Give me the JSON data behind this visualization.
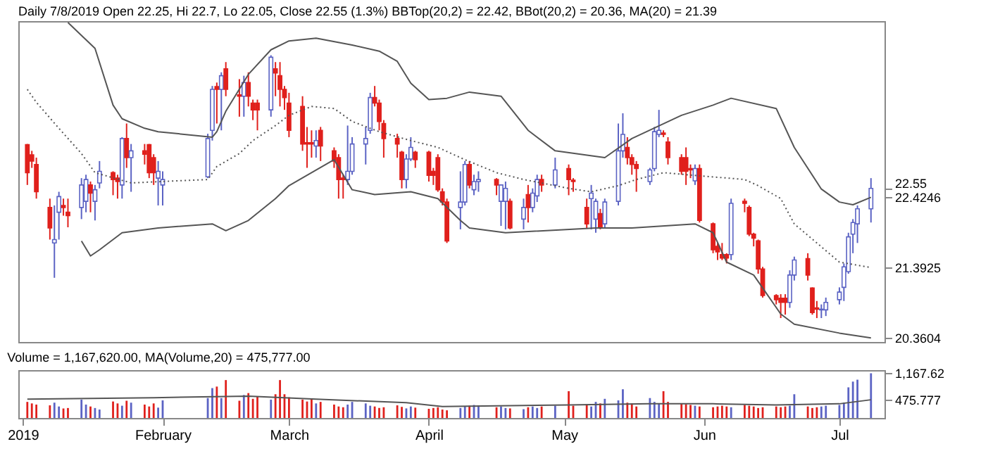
{
  "chart_data": [
    {
      "type": "candlestick",
      "title": "Daily 7/8/2019 Open 22.25, Hi 22.7, Lo 22.05, Close 22.55 (1.3%) BBTop(20,2) = 22.42, BBot(20,2) = 20.36, MA(20) = 21.39",
      "x": [
        "2019-01-02",
        "2019-01-03",
        "2019-01-04",
        "2019-01-07",
        "2019-01-08",
        "2019-01-09",
        "2019-01-10",
        "2019-01-11",
        "2019-01-14",
        "2019-01-15",
        "2019-01-16",
        "2019-01-17",
        "2019-01-18",
        "2019-01-21",
        "2019-01-22",
        "2019-01-23",
        "2019-01-24",
        "2019-01-25",
        "2019-01-28",
        "2019-01-29",
        "2019-01-30",
        "2019-01-31",
        "2019-02-01",
        "2019-02-11",
        "2019-02-12",
        "2019-02-13",
        "2019-02-14",
        "2019-02-15",
        "2019-02-18",
        "2019-02-19",
        "2019-02-20",
        "2019-02-21",
        "2019-02-22",
        "2019-02-25",
        "2019-02-26",
        "2019-02-27",
        "2019-02-28",
        "2019-03-01",
        "2019-03-04",
        "2019-03-05",
        "2019-03-06",
        "2019-03-07",
        "2019-03-08",
        "2019-03-11",
        "2019-03-12",
        "2019-03-13",
        "2019-03-14",
        "2019-03-15",
        "2019-03-18",
        "2019-03-19",
        "2019-03-20",
        "2019-03-21",
        "2019-03-22",
        "2019-03-25",
        "2019-03-26",
        "2019-03-27",
        "2019-03-28",
        "2019-03-29",
        "2019-04-01",
        "2019-04-02",
        "2019-04-03",
        "2019-04-04",
        "2019-04-05",
        "2019-04-08",
        "2019-04-09",
        "2019-04-10",
        "2019-04-11",
        "2019-04-12",
        "2019-04-16",
        "2019-04-17",
        "2019-04-18",
        "2019-04-19",
        "2019-04-22",
        "2019-04-23",
        "2019-04-24",
        "2019-04-25",
        "2019-04-26",
        "2019-04-29",
        "2019-05-02",
        "2019-05-03",
        "2019-05-06",
        "2019-05-07",
        "2019-05-08",
        "2019-05-09",
        "2019-05-10",
        "2019-05-13",
        "2019-05-14",
        "2019-05-15",
        "2019-05-16",
        "2019-05-17",
        "2019-05-20",
        "2019-05-21",
        "2019-05-22",
        "2019-05-23",
        "2019-05-24",
        "2019-05-27",
        "2019-05-28",
        "2019-05-29",
        "2019-05-30",
        "2019-05-31",
        "2019-06-03",
        "2019-06-04",
        "2019-06-05",
        "2019-06-06",
        "2019-06-07",
        "2019-06-10",
        "2019-06-11",
        "2019-06-12",
        "2019-06-13",
        "2019-06-14",
        "2019-06-17",
        "2019-06-18",
        "2019-06-19",
        "2019-06-20",
        "2019-06-21",
        "2019-06-24",
        "2019-06-25",
        "2019-06-26",
        "2019-06-27",
        "2019-06-28",
        "2019-07-01",
        "2019-07-02",
        "2019-07-03",
        "2019-07-04",
        "2019-07-05",
        "2019-07-08"
      ],
      "ohlc": [
        [
          23.19,
          23.2,
          22.6,
          22.78
        ],
        [
          23.04,
          23.1,
          22.85,
          22.95
        ],
        [
          22.9,
          23.0,
          22.4,
          22.5
        ],
        [
          22.27,
          22.4,
          21.8,
          21.97
        ],
        [
          21.75,
          22.3,
          21.24,
          21.8
        ],
        [
          22.2,
          22.5,
          21.8,
          22.43
        ],
        [
          22.3,
          22.4,
          22.15,
          22.27
        ],
        [
          22.2,
          22.4,
          21.98,
          22.15
        ],
        [
          22.27,
          22.7,
          22.1,
          22.6
        ],
        [
          22.36,
          22.75,
          22.2,
          22.68
        ],
        [
          22.6,
          22.65,
          22.2,
          22.48
        ],
        [
          22.36,
          22.6,
          22.08,
          22.53
        ],
        [
          22.63,
          22.95,
          22.55,
          22.8
        ],
        [
          22.78,
          22.8,
          22.45,
          22.68
        ],
        [
          22.7,
          22.75,
          22.4,
          22.65
        ],
        [
          22.6,
          23.3,
          22.4,
          23.28
        ],
        [
          23.28,
          23.5,
          22.85,
          23.0
        ],
        [
          23.0,
          23.2,
          22.5,
          23.1
        ],
        [
          23.1,
          23.2,
          22.9,
          23.05
        ],
        [
          23.19,
          23.2,
          22.7,
          22.78
        ],
        [
          23.0,
          23.05,
          22.6,
          22.78
        ],
        [
          22.7,
          22.95,
          22.3,
          22.8
        ],
        [
          22.6,
          22.8,
          22.3,
          22.68
        ],
        [
          22.72,
          23.35,
          22.7,
          23.28
        ],
        [
          23.4,
          24.05,
          23.25,
          24.0
        ],
        [
          24.04,
          24.1,
          23.5,
          24.0
        ],
        [
          24.0,
          24.25,
          23.4,
          24.2
        ],
        [
          24.3,
          24.4,
          23.9,
          24.0
        ],
        [
          23.92,
          24.15,
          23.6,
          23.9
        ],
        [
          23.9,
          24.2,
          23.6,
          24.1
        ],
        [
          24.1,
          24.25,
          23.75,
          23.9
        ],
        [
          23.8,
          23.85,
          23.55,
          23.7
        ],
        [
          23.8,
          23.85,
          23.4,
          23.7
        ],
        [
          23.7,
          24.5,
          23.6,
          24.47
        ],
        [
          24.3,
          24.4,
          23.9,
          24.24
        ],
        [
          24.2,
          24.4,
          23.75,
          24.0
        ],
        [
          24.0,
          24.05,
          23.7,
          23.88
        ],
        [
          23.8,
          23.95,
          23.3,
          23.4
        ],
        [
          23.75,
          23.9,
          23.1,
          23.2
        ],
        [
          23.22,
          23.45,
          22.85,
          23.2
        ],
        [
          23.22,
          23.4,
          23.0,
          23.2
        ],
        [
          23.17,
          23.4,
          23.0,
          23.25
        ],
        [
          23.4,
          23.45,
          22.95,
          23.17
        ],
        [
          23.1,
          23.15,
          22.85,
          22.95
        ],
        [
          23.0,
          23.05,
          22.4,
          22.68
        ],
        [
          22.7,
          22.75,
          22.4,
          22.68
        ],
        [
          22.68,
          23.47,
          22.6,
          22.8
        ],
        [
          22.8,
          23.3,
          22.75,
          23.2
        ],
        [
          23.2,
          23.45,
          22.9,
          23.28
        ],
        [
          23.4,
          23.95,
          23.35,
          23.88
        ],
        [
          23.88,
          24.05,
          23.75,
          23.8
        ],
        [
          23.8,
          23.85,
          23.4,
          23.53
        ],
        [
          23.5,
          23.55,
          23.0,
          23.28
        ],
        [
          23.28,
          23.35,
          23.0,
          23.2
        ],
        [
          23.08,
          23.1,
          22.55,
          22.68
        ],
        [
          22.68,
          23.05,
          22.55,
          22.98
        ],
        [
          22.98,
          23.3,
          22.95,
          23.15
        ],
        [
          23.08,
          23.1,
          22.85,
          22.97
        ],
        [
          23.08,
          23.1,
          22.65,
          22.74
        ],
        [
          22.8,
          22.85,
          22.6,
          22.74
        ],
        [
          23.0,
          23.05,
          22.5,
          22.53
        ],
        [
          22.5,
          22.55,
          22.3,
          22.35
        ],
        [
          22.35,
          22.4,
          21.75,
          21.78
        ],
        [
          22.27,
          22.8,
          21.95,
          22.35
        ],
        [
          22.35,
          22.95,
          22.3,
          22.9
        ],
        [
          22.9,
          22.95,
          22.55,
          22.6
        ],
        [
          22.53,
          22.75,
          22.45,
          22.65
        ],
        [
          22.65,
          22.8,
          22.5,
          22.68
        ],
        [
          22.68,
          22.7,
          22.45,
          22.6
        ],
        [
          22.36,
          22.6,
          22.0,
          22.6
        ],
        [
          22.36,
          22.65,
          21.95,
          22.55
        ],
        [
          22.36,
          22.4,
          21.95,
          21.97
        ],
        [
          22.1,
          22.4,
          21.95,
          22.27
        ],
        [
          22.46,
          22.6,
          22.05,
          22.27
        ],
        [
          22.27,
          22.55,
          22.2,
          22.48
        ],
        [
          22.44,
          22.75,
          22.35,
          22.68
        ],
        [
          22.68,
          22.75,
          22.5,
          22.6
        ],
        [
          22.6,
          23.0,
          22.55,
          22.82
        ],
        [
          22.84,
          22.9,
          22.45,
          22.68
        ],
        [
          22.67,
          22.7,
          22.5,
          22.65
        ],
        [
          22.27,
          22.4,
          21.97,
          22.03
        ],
        [
          22.4,
          22.6,
          21.95,
          22.48
        ],
        [
          22.1,
          22.4,
          21.9,
          22.36
        ],
        [
          22.18,
          22.25,
          21.95,
          21.97
        ],
        [
          22.03,
          22.4,
          21.97,
          22.35
        ],
        [
          22.36,
          23.5,
          22.3,
          23.1
        ],
        [
          23.1,
          23.65,
          23.0,
          23.34
        ],
        [
          23.15,
          23.3,
          22.9,
          23.0
        ],
        [
          23.0,
          23.05,
          22.75,
          22.9
        ],
        [
          22.9,
          22.95,
          22.5,
          22.84
        ],
        [
          22.65,
          22.85,
          22.6,
          22.82
        ],
        [
          22.84,
          23.45,
          22.8,
          23.38
        ],
        [
          23.34,
          23.7,
          23.3,
          23.4
        ],
        [
          23.36,
          23.4,
          23.3,
          23.34
        ],
        [
          23.23,
          23.3,
          22.9,
          23.0
        ],
        [
          23.0,
          23.05,
          22.75,
          22.8
        ],
        [
          23.0,
          23.15,
          22.6,
          22.8
        ],
        [
          22.84,
          22.9,
          22.7,
          22.82
        ],
        [
          22.66,
          22.9,
          22.6,
          22.84
        ],
        [
          22.84,
          22.9,
          22.05,
          22.08
        ],
        [
          22.03,
          22.05,
          21.6,
          21.65
        ],
        [
          21.7,
          21.75,
          21.5,
          21.62
        ],
        [
          21.58,
          21.75,
          21.5,
          21.53
        ],
        [
          21.58,
          21.6,
          21.45,
          21.53
        ],
        [
          21.58,
          22.4,
          21.5,
          22.33
        ],
        [
          22.36,
          22.4,
          22.2,
          22.33
        ],
        [
          22.27,
          22.3,
          21.85,
          21.88
        ],
        [
          21.88,
          21.9,
          21.7,
          21.82
        ],
        [
          21.78,
          21.8,
          21.3,
          21.37
        ],
        [
          21.37,
          21.4,
          20.95,
          20.98
        ],
        [
          20.98,
          21.0,
          20.85,
          20.92
        ],
        [
          20.94,
          21.0,
          20.65,
          20.88
        ],
        [
          20.94,
          21.0,
          20.7,
          20.88
        ],
        [
          20.88,
          21.35,
          20.8,
          21.28
        ],
        [
          21.28,
          21.55,
          21.2,
          21.5
        ],
        [
          21.52,
          21.6,
          21.2,
          21.28
        ],
        [
          21.09,
          21.1,
          20.7,
          20.73
        ],
        [
          20.8,
          20.9,
          20.65,
          20.78
        ],
        [
          20.77,
          20.85,
          20.65,
          20.78
        ],
        [
          20.77,
          20.95,
          20.68,
          20.88
        ],
        [
          20.92,
          21.1,
          20.85,
          21.03
        ],
        [
          21.1,
          21.45,
          20.9,
          21.4
        ],
        [
          21.33,
          21.9,
          21.3,
          21.84
        ],
        [
          21.88,
          22.1,
          21.6,
          22.05
        ],
        [
          22.03,
          22.3,
          21.75,
          22.25
        ],
        [
          22.25,
          22.7,
          22.05,
          22.55
        ]
      ],
      "colors": [
        "#e0201c",
        "#e0201c",
        "#e0201c",
        "#e0201c",
        "#5b63c4",
        "#5b63c4",
        "#e0201c",
        "#e0201c",
        "#5b63c4",
        "#5b63c4",
        "#e0201c",
        "#5b63c4",
        "#5b63c4",
        "#e0201c",
        "#e0201c",
        "#5b63c4",
        "#e0201c",
        "#5b63c4",
        "#e0201c",
        "#e0201c",
        "#e0201c",
        "#5b63c4",
        "#5b63c4",
        "#5b63c4",
        "#5b63c4",
        "#e0201c",
        "#5b63c4",
        "#e0201c",
        "#e0201c",
        "#5b63c4",
        "#e0201c",
        "#e0201c",
        "#e0201c",
        "#5b63c4",
        "#e0201c",
        "#e0201c",
        "#e0201c",
        "#e0201c",
        "#e0201c",
        "#e0201c",
        "#e0201c",
        "#5b63c4",
        "#e0201c",
        "#e0201c",
        "#e0201c",
        "#e0201c",
        "#5b63c4",
        "#5b63c4",
        "#5b63c4",
        "#5b63c4",
        "#e0201c",
        "#e0201c",
        "#e0201c",
        "#e0201c",
        "#e0201c",
        "#5b63c4",
        "#5b63c4",
        "#e0201c",
        "#e0201c",
        "#e0201c",
        "#e0201c",
        "#e0201c",
        "#e0201c",
        "#5b63c4",
        "#5b63c4",
        "#e0201c",
        "#5b63c4",
        "#5b63c4",
        "#e0201c",
        "#5b63c4",
        "#5b63c4",
        "#e0201c",
        "#5b63c4",
        "#e0201c",
        "#5b63c4",
        "#5b63c4",
        "#e0201c",
        "#5b63c4",
        "#e0201c",
        "#e0201c",
        "#e0201c",
        "#5b63c4",
        "#5b63c4",
        "#e0201c",
        "#5b63c4",
        "#5b63c4",
        "#5b63c4",
        "#e0201c",
        "#e0201c",
        "#e0201c",
        "#5b63c4",
        "#5b63c4",
        "#5b63c4",
        "#e0201c",
        "#e0201c",
        "#e0201c",
        "#e0201c",
        "#e0201c",
        "#5b63c4",
        "#e0201c",
        "#e0201c",
        "#e0201c",
        "#e0201c",
        "#e0201c",
        "#5b63c4",
        "#e0201c",
        "#e0201c",
        "#e0201c",
        "#e0201c",
        "#e0201c",
        "#e0201c",
        "#e0201c",
        "#e0201c",
        "#5b63c4",
        "#5b63c4",
        "#e0201c",
        "#e0201c",
        "#e0201c",
        "#5b63c4",
        "#5b63c4",
        "#5b63c4",
        "#5b63c4",
        "#5b63c4",
        "#5b63c4",
        "#5b63c4",
        "#5b63c4"
      ],
      "series": [
        {
          "type": "line",
          "color": "#555555",
          "line_style": "solid",
          "x": [
            "2019-01-11",
            "2019-01-17",
            "2019-01-21",
            "2019-01-23",
            "2019-01-28",
            "2019-01-31",
            "2019-02-12",
            "2019-02-13",
            "2019-02-15",
            "2019-02-20",
            "2019-02-25",
            "2019-03-01",
            "2019-03-07",
            "2019-03-15",
            "2019-03-21",
            "2019-03-25",
            "2019-03-28",
            "2019-04-01",
            "2019-04-05",
            "2019-04-10",
            "2019-04-17",
            "2019-04-23",
            "2019-04-29",
            "2019-05-10",
            "2019-05-16",
            "2019-05-27",
            "2019-06-03",
            "2019-06-07",
            "2019-06-17",
            "2019-06-21",
            "2019-06-27",
            "2019-07-01",
            "2019-07-04",
            "2019-07-08"
          ],
          "values": [
            24.98,
            24.6,
            23.77,
            23.57,
            23.43,
            23.38,
            23.3,
            23.38,
            23.68,
            24.22,
            24.58,
            24.71,
            24.75,
            24.65,
            24.56,
            24.41,
            24.09,
            23.85,
            23.87,
            23.96,
            23.9,
            23.4,
            23.1,
            23.0,
            23.28,
            23.62,
            23.77,
            23.87,
            23.72,
            23.15,
            22.54,
            22.35,
            22.31,
            22.42
          ]
        },
        {
          "type": "line",
          "color": "#555555",
          "line_style": "dotted",
          "x": [
            "2019-01-02",
            "2019-01-04",
            "2019-01-09",
            "2019-01-14",
            "2019-01-17",
            "2019-01-25",
            "2019-02-11",
            "2019-02-13",
            "2019-02-18",
            "2019-02-21",
            "2019-02-26",
            "2019-03-01",
            "2019-03-06",
            "2019-03-11",
            "2019-03-15",
            "2019-03-21",
            "2019-03-28",
            "2019-04-03",
            "2019-04-09",
            "2019-04-16",
            "2019-04-22",
            "2019-05-02",
            "2019-05-07",
            "2019-05-13",
            "2019-05-17",
            "2019-05-23",
            "2019-05-30",
            "2019-06-10",
            "2019-06-13",
            "2019-06-18",
            "2019-06-21",
            "2019-06-26",
            "2019-07-01",
            "2019-07-08"
          ],
          "values": [
            24.0,
            23.81,
            23.43,
            23.06,
            22.78,
            22.63,
            22.68,
            22.87,
            23.06,
            23.25,
            23.47,
            23.62,
            23.75,
            23.72,
            23.53,
            23.38,
            23.25,
            23.15,
            22.97,
            22.78,
            22.68,
            22.55,
            22.5,
            22.59,
            22.68,
            22.78,
            22.74,
            22.68,
            22.59,
            22.4,
            22.03,
            21.75,
            21.47,
            21.39
          ]
        },
        {
          "type": "line",
          "color": "#555555",
          "line_style": "solid",
          "x": [
            "2019-01-14",
            "2019-01-16",
            "2019-01-18",
            "2019-01-23",
            "2019-01-31",
            "2019-02-12",
            "2019-02-15",
            "2019-02-20",
            "2019-02-26",
            "2019-03-01",
            "2019-03-11",
            "2019-03-15",
            "2019-03-20",
            "2019-03-28",
            "2019-04-03",
            "2019-04-08",
            "2019-04-10",
            "2019-04-18",
            "2019-05-08",
            "2019-05-16",
            "2019-05-30",
            "2019-06-03",
            "2019-06-06",
            "2019-06-12",
            "2019-06-18",
            "2019-06-21",
            "2019-07-01",
            "2019-07-08"
          ],
          "values": [
            21.78,
            21.56,
            21.65,
            21.9,
            21.97,
            22.03,
            21.93,
            22.08,
            22.4,
            22.59,
            22.97,
            22.53,
            22.46,
            22.5,
            22.4,
            22.08,
            21.97,
            21.9,
            21.97,
            21.97,
            22.03,
            21.9,
            21.47,
            21.28,
            20.71,
            20.56,
            20.43,
            20.36
          ]
        }
      ],
      "xlim": [
        "2018-12-31",
        "2019-07-11"
      ],
      "ylim": [
        20.3,
        25.0
      ],
      "yticks": [
        22.55,
        22.4246,
        21.3925,
        20.3604
      ],
      "tick_labels": "y"
    },
    {
      "type": "bar",
      "title": "Volume = 1,167,620.00, MA(Volume,20) = 475,777.00",
      "x": [
        "2019-01-02",
        "2019-01-03",
        "2019-01-04",
        "2019-01-07",
        "2019-01-08",
        "2019-01-09",
        "2019-01-10",
        "2019-01-11",
        "2019-01-14",
        "2019-01-15",
        "2019-01-16",
        "2019-01-17",
        "2019-01-18",
        "2019-01-21",
        "2019-01-22",
        "2019-01-23",
        "2019-01-24",
        "2019-01-25",
        "2019-01-28",
        "2019-01-29",
        "2019-01-30",
        "2019-01-31",
        "2019-02-01",
        "2019-02-11",
        "2019-02-12",
        "2019-02-13",
        "2019-02-14",
        "2019-02-15",
        "2019-02-18",
        "2019-02-19",
        "2019-02-20",
        "2019-02-21",
        "2019-02-22",
        "2019-02-25",
        "2019-02-26",
        "2019-02-27",
        "2019-02-28",
        "2019-03-01",
        "2019-03-04",
        "2019-03-05",
        "2019-03-06",
        "2019-03-07",
        "2019-03-08",
        "2019-03-11",
        "2019-03-12",
        "2019-03-13",
        "2019-03-14",
        "2019-03-15",
        "2019-03-18",
        "2019-03-19",
        "2019-03-20",
        "2019-03-21",
        "2019-03-22",
        "2019-03-25",
        "2019-03-26",
        "2019-03-27",
        "2019-03-28",
        "2019-03-29",
        "2019-04-01",
        "2019-04-02",
        "2019-04-03",
        "2019-04-04",
        "2019-04-05",
        "2019-04-08",
        "2019-04-09",
        "2019-04-10",
        "2019-04-11",
        "2019-04-12",
        "2019-04-16",
        "2019-04-17",
        "2019-04-18",
        "2019-04-19",
        "2019-04-22",
        "2019-04-23",
        "2019-04-24",
        "2019-04-25",
        "2019-04-26",
        "2019-04-29",
        "2019-05-02",
        "2019-05-03",
        "2019-05-06",
        "2019-05-07",
        "2019-05-08",
        "2019-05-09",
        "2019-05-10",
        "2019-05-13",
        "2019-05-14",
        "2019-05-15",
        "2019-05-16",
        "2019-05-17",
        "2019-05-20",
        "2019-05-21",
        "2019-05-22",
        "2019-05-23",
        "2019-05-24",
        "2019-05-27",
        "2019-05-28",
        "2019-05-29",
        "2019-05-30",
        "2019-05-31",
        "2019-06-03",
        "2019-06-04",
        "2019-06-05",
        "2019-06-06",
        "2019-06-07",
        "2019-06-10",
        "2019-06-11",
        "2019-06-12",
        "2019-06-13",
        "2019-06-14",
        "2019-06-17",
        "2019-06-18",
        "2019-06-19",
        "2019-06-20",
        "2019-06-21",
        "2019-06-24",
        "2019-06-25",
        "2019-06-26",
        "2019-06-27",
        "2019-06-28",
        "2019-07-01",
        "2019-07-02",
        "2019-07-03",
        "2019-07-04",
        "2019-07-05",
        "2019-07-08"
      ],
      "values": [
        420,
        380,
        350,
        330,
        400,
        300,
        250,
        260,
        480,
        350,
        300,
        260,
        220,
        430,
        380,
        320,
        450,
        400,
        350,
        300,
        380,
        270,
        460,
        520,
        780,
        820,
        520,
        990,
        450,
        600,
        650,
        500,
        560,
        480,
        620,
        990,
        620,
        540,
        480,
        430,
        500,
        380,
        420,
        350,
        300,
        280,
        350,
        420,
        380,
        320,
        300,
        260,
        280,
        330,
        290,
        250,
        300,
        270,
        240,
        260,
        280,
        220,
        200,
        260,
        300,
        320,
        340,
        330,
        280,
        300,
        260,
        250,
        230,
        280,
        300,
        260,
        300,
        320,
        700,
        320,
        360,
        300,
        420,
        380,
        500,
        460,
        750,
        400,
        380,
        300,
        520,
        420,
        380,
        700,
        420,
        380,
        360,
        340,
        320,
        300,
        280,
        300,
        320,
        300,
        280,
        340,
        320,
        300,
        260,
        280,
        300,
        280,
        300,
        320,
        620,
        300,
        260,
        280,
        300,
        320,
        340,
        400,
        800,
        950,
        1000,
        1167.62
      ],
      "colors": [
        "#e0201c",
        "#e0201c",
        "#e0201c",
        "#e0201c",
        "#5b63c4",
        "#5b63c4",
        "#e0201c",
        "#e0201c",
        "#5b63c4",
        "#5b63c4",
        "#e0201c",
        "#5b63c4",
        "#5b63c4",
        "#e0201c",
        "#e0201c",
        "#5b63c4",
        "#e0201c",
        "#5b63c4",
        "#e0201c",
        "#e0201c",
        "#e0201c",
        "#5b63c4",
        "#5b63c4",
        "#5b63c4",
        "#5b63c4",
        "#e0201c",
        "#5b63c4",
        "#e0201c",
        "#e0201c",
        "#5b63c4",
        "#e0201c",
        "#e0201c",
        "#e0201c",
        "#5b63c4",
        "#e0201c",
        "#e0201c",
        "#e0201c",
        "#e0201c",
        "#e0201c",
        "#e0201c",
        "#e0201c",
        "#5b63c4",
        "#e0201c",
        "#e0201c",
        "#e0201c",
        "#e0201c",
        "#5b63c4",
        "#5b63c4",
        "#5b63c4",
        "#5b63c4",
        "#e0201c",
        "#e0201c",
        "#e0201c",
        "#e0201c",
        "#e0201c",
        "#5b63c4",
        "#5b63c4",
        "#e0201c",
        "#e0201c",
        "#e0201c",
        "#e0201c",
        "#e0201c",
        "#e0201c",
        "#5b63c4",
        "#5b63c4",
        "#e0201c",
        "#5b63c4",
        "#5b63c4",
        "#e0201c",
        "#5b63c4",
        "#5b63c4",
        "#e0201c",
        "#5b63c4",
        "#e0201c",
        "#5b63c4",
        "#5b63c4",
        "#e0201c",
        "#5b63c4",
        "#e0201c",
        "#e0201c",
        "#e0201c",
        "#5b63c4",
        "#5b63c4",
        "#e0201c",
        "#5b63c4",
        "#5b63c4",
        "#5b63c4",
        "#e0201c",
        "#e0201c",
        "#e0201c",
        "#5b63c4",
        "#5b63c4",
        "#5b63c4",
        "#e0201c",
        "#e0201c",
        "#e0201c",
        "#e0201c",
        "#e0201c",
        "#5b63c4",
        "#e0201c",
        "#e0201c",
        "#e0201c",
        "#e0201c",
        "#e0201c",
        "#5b63c4",
        "#e0201c",
        "#e0201c",
        "#e0201c",
        "#e0201c",
        "#e0201c",
        "#e0201c",
        "#e0201c",
        "#e0201c",
        "#5b63c4",
        "#5b63c4",
        "#e0201c",
        "#e0201c",
        "#e0201c",
        "#5b63c4",
        "#5b63c4",
        "#5b63c4",
        "#5b63c4",
        "#5b63c4",
        "#5b63c4",
        "#5b63c4",
        "#5b63c4"
      ],
      "series": [
        {
          "type": "line",
          "color": "#555555",
          "line_style": "solid",
          "x": [
            "2019-01-02",
            "2019-01-30",
            "2019-02-20",
            "2019-03-07",
            "2019-03-27",
            "2019-04-04",
            "2019-05-02",
            "2019-05-20",
            "2019-06-03",
            "2019-06-17",
            "2019-07-01",
            "2019-07-08"
          ],
          "values": [
            490,
            530,
            570,
            490,
            400,
            300,
            340,
            370,
            370,
            340,
            370,
            475.777
          ]
        }
      ],
      "xlim": [
        "2018-12-31",
        "2019-07-11"
      ],
      "xticks": [
        {
          "value": "2019-01-01",
          "label": "2019"
        },
        {
          "value": "2019-02-01",
          "label": "February"
        },
        {
          "value": "2019-03-01",
          "label": "March"
        },
        {
          "value": "2019-04-01",
          "label": "April"
        },
        {
          "value": "2019-05-01",
          "label": "May"
        },
        {
          "value": "2019-06-01",
          "label": "Jun"
        },
        {
          "value": "2019-07-01",
          "label": "Jul"
        }
      ],
      "ylim": [
        0,
        1250
      ],
      "yticks": [
        {
          "value": 1167.62,
          "label": "1,167.62"
        },
        {
          "value": 475.777,
          "label": "475.777"
        }
      ]
    }
  ]
}
